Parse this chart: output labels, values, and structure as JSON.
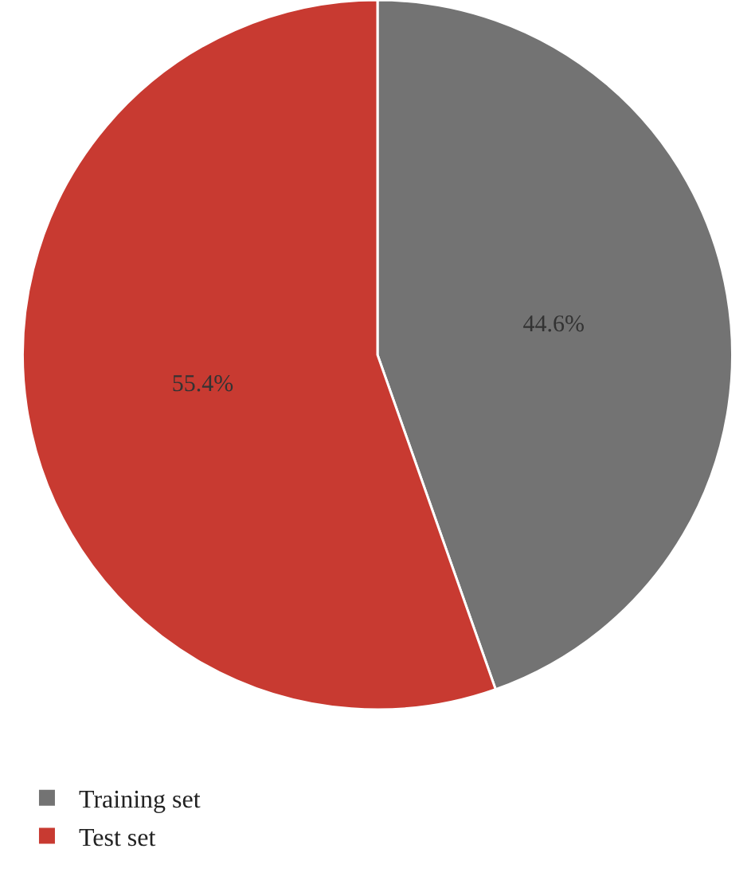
{
  "chart_data": {
    "type": "pie",
    "categories": [
      "Training set",
      "Test set"
    ],
    "values": [
      44.6,
      55.4
    ],
    "colors": [
      "#737373",
      "#c83a31"
    ],
    "value_labels": [
      "44.6%",
      "55.4%"
    ],
    "legend": "bottom left"
  }
}
